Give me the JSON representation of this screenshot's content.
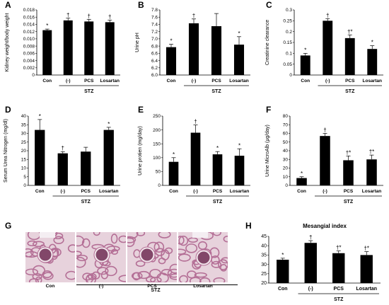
{
  "chart_data": [
    {
      "panel": "A",
      "type": "bar",
      "categories": [
        "Con",
        "(-)",
        "PCS",
        "Losartan"
      ],
      "values": [
        0.0124,
        0.0151,
        0.0148,
        0.0146
      ],
      "errors": [
        0.0003,
        0.0006,
        0.0006,
        0.0006
      ],
      "marks": [
        "*",
        "†",
        "†",
        "†"
      ],
      "ylabel": "Kidney weight/body weight",
      "ylim": [
        0,
        0.018
      ],
      "yticks": [
        "0",
        "0.002",
        "0.004",
        "0.006",
        "0.008",
        "0.010",
        "0.012",
        "0.014",
        "0.016",
        "0.018"
      ],
      "group_label": "STZ"
    },
    {
      "panel": "B",
      "type": "bar",
      "categories": [
        "Con",
        "(-)",
        "PCS",
        "Losartan"
      ],
      "values": [
        6.77,
        7.43,
        7.35,
        6.84
      ],
      "errors": [
        0.08,
        0.12,
        0.35,
        0.22
      ],
      "marks": [
        "*",
        "†",
        "",
        "*"
      ],
      "ylabel": "Urine pH",
      "ylim": [
        6.0,
        7.8
      ],
      "yticks": [
        "6.0",
        "6.2",
        "6.4",
        "6.6",
        "6.8",
        "7.0",
        "7.2",
        "7.4",
        "7.6",
        "7.8"
      ],
      "group_label": "STZ"
    },
    {
      "panel": "C",
      "type": "bar",
      "categories": [
        "Con",
        "(-)",
        "PCS",
        "Losartan"
      ],
      "values": [
        0.09,
        0.25,
        0.17,
        0.12
      ],
      "errors": [
        0.01,
        0.01,
        0.015,
        0.015
      ],
      "marks": [
        "*",
        "†",
        "†*",
        "*"
      ],
      "ylabel": "Creatinine clearance",
      "ylim": [
        0,
        0.3
      ],
      "yticks": [
        "0",
        "0.05",
        "0.1",
        "0.15",
        "0.2",
        "0.25",
        "0.3"
      ],
      "group_label": "STZ"
    },
    {
      "panel": "D",
      "type": "bar",
      "categories": [
        "Con",
        "(-)",
        "PCS",
        "Losartan"
      ],
      "values": [
        32,
        18.5,
        19.5,
        32
      ],
      "errors": [
        6,
        1,
        2.5,
        1.5
      ],
      "marks": [
        "*",
        "†",
        "",
        "*"
      ],
      "ylabel": "Serum Urea Nitrogen (mg/dl)",
      "ylim": [
        0,
        40
      ],
      "yticks": [
        "0",
        "5",
        "10",
        "15",
        "20",
        "25",
        "30",
        "35",
        "40"
      ],
      "group_label": "STZ"
    },
    {
      "panel": "E",
      "type": "bar",
      "categories": [
        "Con",
        "(-)",
        "PCS",
        "Losartan"
      ],
      "values": [
        85,
        190,
        112,
        107
      ],
      "errors": [
        15,
        28,
        10,
        25
      ],
      "marks": [
        "*",
        "†",
        "*",
        "*"
      ],
      "ylabel": "Urine protien (mg/day)",
      "ylim": [
        0,
        250
      ],
      "yticks": [
        "0",
        "50",
        "100",
        "150",
        "200",
        "250"
      ],
      "group_label": "STZ"
    },
    {
      "panel": "F",
      "type": "bar",
      "categories": [
        "Con",
        "(-)",
        "PCS",
        "Losartan"
      ],
      "values": [
        8.5,
        57,
        29,
        30
      ],
      "errors": [
        1.5,
        3,
        5,
        5
      ],
      "marks": [
        "*",
        "†",
        "†*",
        "†*"
      ],
      "ylabel": "Urine MicroAlb (μg/day)",
      "ylim": [
        0,
        80
      ],
      "yticks": [
        "0",
        "10",
        "20",
        "30",
        "40",
        "50",
        "60",
        "70",
        "80"
      ],
      "group_label": "STZ"
    },
    {
      "panel": "H",
      "type": "bar",
      "title": "Mesangial index",
      "categories": [
        "Con",
        "(-)",
        "PCS",
        "Losartan"
      ],
      "values": [
        32.5,
        41.5,
        36,
        35
      ],
      "errors": [
        0.8,
        1.2,
        1.2,
        1.8
      ],
      "marks": [
        "*",
        "†",
        "†*",
        "†*"
      ],
      "ylabel": "",
      "ylim": [
        20,
        45
      ],
      "yticks": [
        "20",
        "25",
        "30",
        "35",
        "40",
        "45"
      ],
      "group_label": "STZ"
    }
  ],
  "histology": {
    "panel": "G",
    "labels": [
      "Con",
      "(-)",
      "PCS",
      "Losartan"
    ],
    "group_label": "STZ"
  },
  "colors": {
    "bar": "#000000",
    "tissue_bg": "#e7d2dc",
    "tissue_stain": "#b46f96",
    "glomerulus": "#6e2a52"
  }
}
